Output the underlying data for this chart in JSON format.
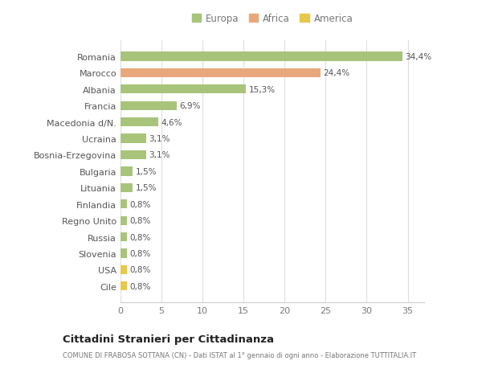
{
  "categories": [
    "Cile",
    "USA",
    "Slovenia",
    "Russia",
    "Regno Unito",
    "Finlandia",
    "Lituania",
    "Bulgaria",
    "Bosnia-Erzegovina",
    "Ucraina",
    "Macedonia d/N.",
    "Francia",
    "Albania",
    "Marocco",
    "Romania"
  ],
  "values": [
    0.8,
    0.8,
    0.8,
    0.8,
    0.8,
    0.8,
    1.5,
    1.5,
    3.1,
    3.1,
    4.6,
    6.9,
    15.3,
    24.4,
    34.4
  ],
  "colors": [
    "#e8c84a",
    "#e8c84a",
    "#a8c47a",
    "#a8c47a",
    "#a8c47a",
    "#a8c47a",
    "#a8c47a",
    "#a8c47a",
    "#a8c47a",
    "#a8c47a",
    "#a8c47a",
    "#a8c47a",
    "#a8c47a",
    "#e8a87c",
    "#a8c47a"
  ],
  "labels": [
    "0,8%",
    "0,8%",
    "0,8%",
    "0,8%",
    "0,8%",
    "0,8%",
    "1,5%",
    "1,5%",
    "3,1%",
    "3,1%",
    "4,6%",
    "6,9%",
    "15,3%",
    "24,4%",
    "34,4%"
  ],
  "legend": [
    {
      "label": "Europa",
      "color": "#a8c47a"
    },
    {
      "label": "Africa",
      "color": "#e8a87c"
    },
    {
      "label": "America",
      "color": "#e8c84a"
    }
  ],
  "title": "Cittadini Stranieri per Cittadinanza",
  "subtitle": "COMUNE DI FRABOSA SOTTANA (CN) - Dati ISTAT al 1° gennaio di ogni anno - Elaborazione TUTTITALIA.IT",
  "xlim": [
    0,
    37
  ],
  "xticks": [
    0,
    5,
    10,
    15,
    20,
    25,
    30,
    35
  ],
  "background_color": "#ffffff",
  "grid_color": "#e0dede",
  "bar_height": 0.55
}
